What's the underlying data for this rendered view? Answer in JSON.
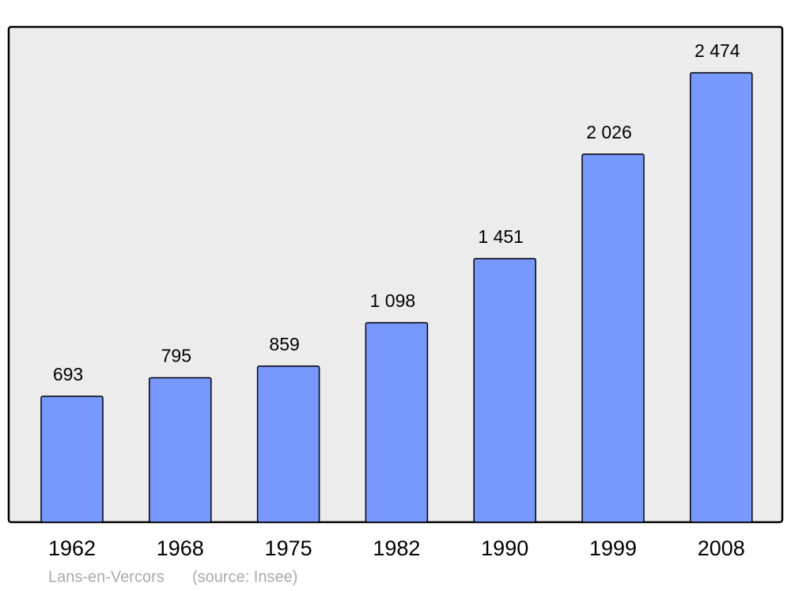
{
  "chart_data": {
    "type": "bar",
    "categories": [
      "1962",
      "1968",
      "1975",
      "1982",
      "1990",
      "1999",
      "2008"
    ],
    "values": [
      693,
      795,
      859,
      1098,
      1451,
      2026,
      2474
    ],
    "value_labels": [
      "693",
      "795",
      "859",
      "1 098",
      "1 451",
      "2 026",
      "2 474"
    ],
    "color": "#7799ff",
    "caption": "Lans-en-Vercors",
    "source": "(source: Insee)"
  }
}
